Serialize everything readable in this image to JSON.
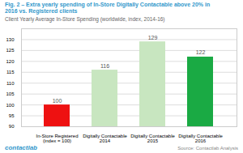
{
  "chart_data": {
    "type": "bar",
    "title": "Fig. 2 – Extra yearly spending of In-Store Digitally Contactable above 20% in\n2016 vs. Registered clients",
    "subtitle": "Client Yearly Average In-Store Spending (worldwide, index, 2014-16)",
    "source": "Source: Contactlab Analysis",
    "footer": "contactlab",
    "categories": [
      "In-Store Registered\n(index = 100)",
      "Digitally Contactable\n2014",
      "Digitally Contactable\n2015",
      "Digitally Contactable\n2016"
    ],
    "values": [
      100,
      116,
      129,
      122
    ],
    "colors": [
      "#ee1111",
      "#c8e6c0",
      "#c8e6c0",
      "#1aaa44"
    ],
    "ylim": [
      90,
      135
    ],
    "yticks": [
      90,
      95,
      100,
      105,
      110,
      115,
      120,
      125,
      130
    ],
    "grid": true,
    "data_labels": true
  }
}
